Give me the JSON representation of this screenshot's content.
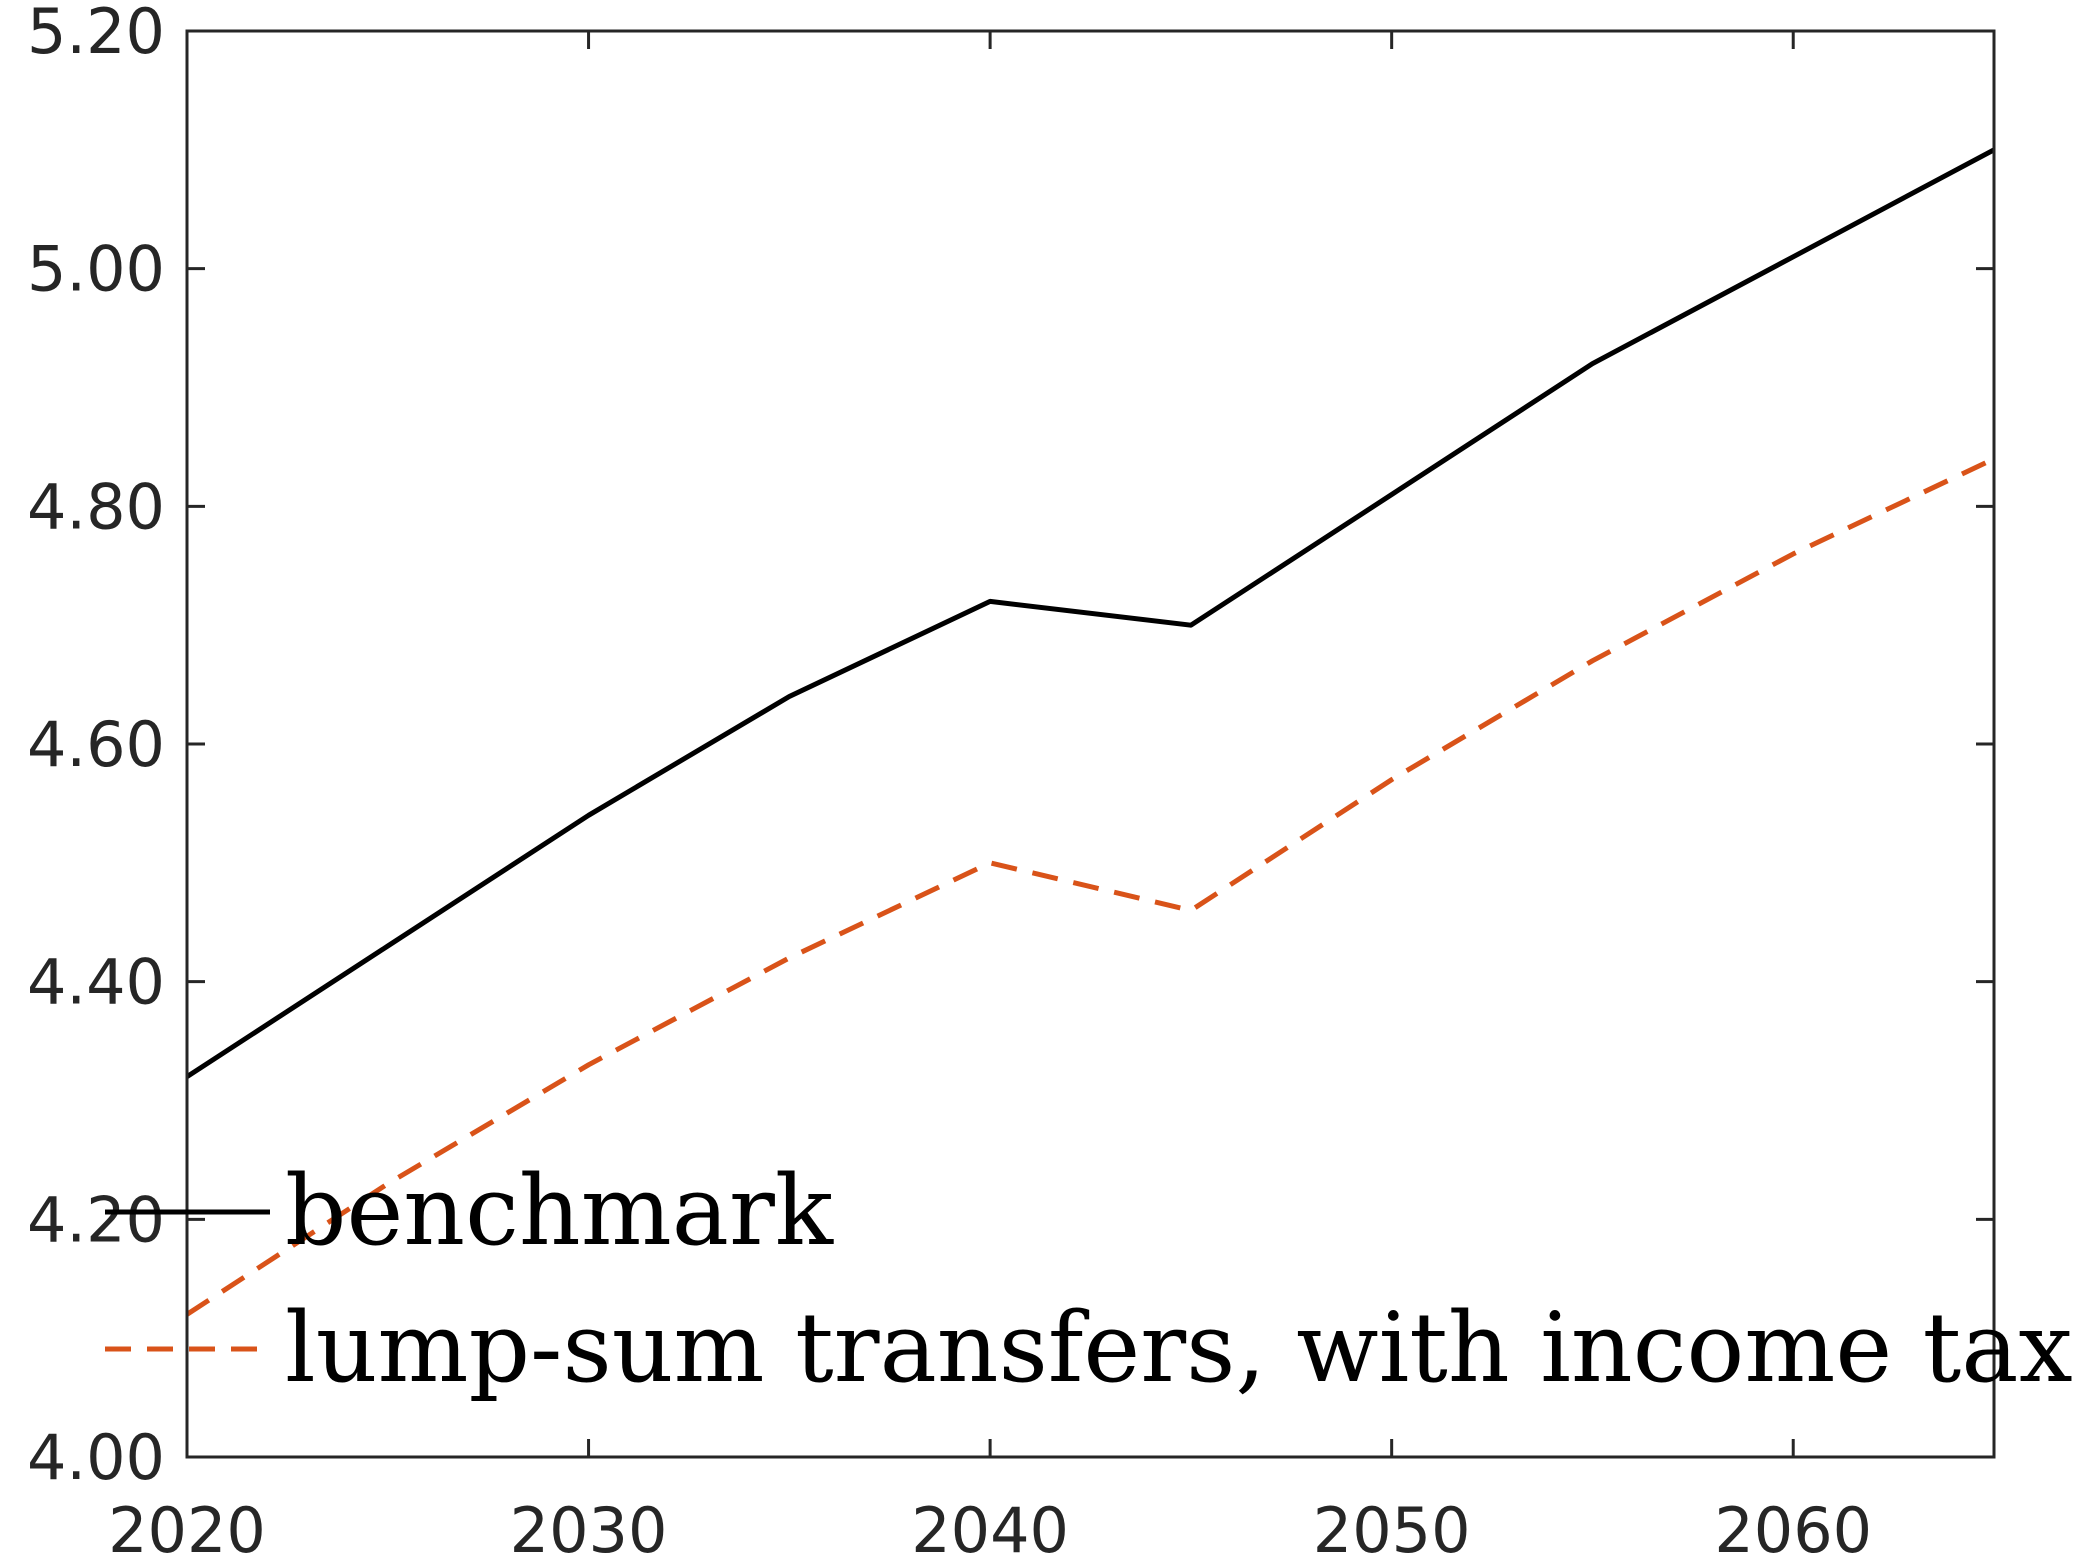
{
  "chart_data": {
    "type": "line",
    "title": "",
    "xlabel": "",
    "ylabel": "",
    "xlim": [
      2020,
      2065
    ],
    "ylim": [
      4.0,
      5.2
    ],
    "x_ticks": [
      "2020",
      "2030",
      "2040",
      "2050",
      "2060"
    ],
    "y_ticks": [
      "4.00",
      "4.20",
      "4.40",
      "4.60",
      "4.80",
      "5.00",
      "5.20"
    ],
    "grid": false,
    "legend_position": "bottom-left",
    "x": [
      2020,
      2025,
      2030,
      2035,
      2040,
      2045,
      2050,
      2055,
      2060,
      2065
    ],
    "series": [
      {
        "name": "benchmark",
        "color": "#000000",
        "style": "solid",
        "values": [
          4.32,
          4.43,
          4.54,
          4.64,
          4.72,
          4.7,
          4.81,
          4.92,
          5.01,
          5.1
        ]
      },
      {
        "name": "lump-sum transfers, with income tax",
        "color": "#D95319",
        "style": "dashed",
        "values": [
          4.12,
          4.23,
          4.33,
          4.42,
          4.5,
          4.46,
          4.57,
          4.67,
          4.76,
          4.84
        ]
      }
    ]
  }
}
